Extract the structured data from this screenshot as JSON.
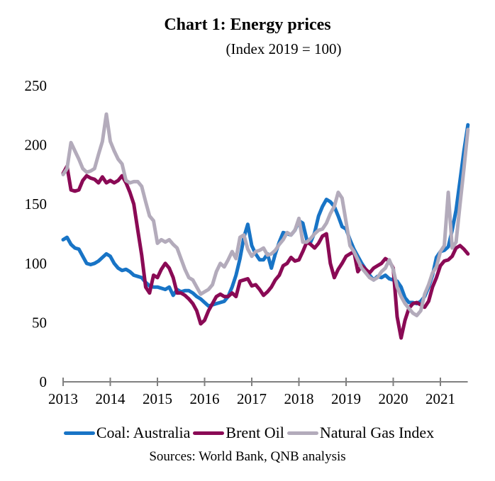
{
  "colors": {
    "coal": "#1874c6",
    "oil": "#8a0a55",
    "gas": "#b3abbb",
    "axis": "#808080"
  },
  "chart_data": {
    "type": "line",
    "title": "Chart 1: Energy prices",
    "subtitle": "(Index 2019 = 100)",
    "xlabel": "",
    "ylabel": "",
    "ylim": [
      0,
      250
    ],
    "yticks": [
      0,
      50,
      100,
      150,
      200,
      250
    ],
    "ytick_labels": [
      "0",
      "50",
      "100",
      "150",
      "200",
      "250"
    ],
    "xlim": [
      2013,
      2021.58
    ],
    "xticks": [
      2013,
      2014,
      2015,
      2016,
      2017,
      2018,
      2019,
      2020,
      2021
    ],
    "xtick_labels": [
      "2013",
      "2014",
      "2015",
      "2016",
      "2017",
      "2018",
      "2019",
      "2020",
      "2021"
    ],
    "grid": false,
    "legend_position": "bottom",
    "x_start": 2013.0,
    "x_step_years": 0.08333,
    "series": [
      {
        "name": "Coal: Australia",
        "key": "coal",
        "values": [
          120,
          122,
          116,
          113,
          112,
          106,
          100,
          99,
          100,
          102,
          105,
          108,
          106,
          100,
          96,
          94,
          95,
          93,
          90,
          89,
          88,
          84,
          81,
          80,
          80,
          79,
          78,
          80,
          73,
          78,
          76,
          77,
          77,
          75,
          72,
          70,
          67,
          64,
          65,
          66,
          67,
          68,
          72,
          80,
          90,
          104,
          122,
          133,
          115,
          108,
          103,
          103,
          108,
          96,
          108,
          118,
          126,
          125,
          124,
          128,
          136,
          134,
          120,
          118,
          126,
          140,
          148,
          154,
          152,
          148,
          140,
          131,
          129,
          120,
          112,
          106,
          100,
          95,
          90,
          86,
          89,
          88,
          90,
          87,
          86,
          85,
          80,
          71,
          67,
          67,
          66,
          68,
          72,
          80,
          90,
          105,
          110,
          111,
          114,
          128,
          145,
          170,
          195,
          217
        ]
      },
      {
        "name": "Brent Oil",
        "key": "oil",
        "values": [
          176,
          182,
          162,
          161,
          162,
          170,
          174,
          172,
          171,
          168,
          173,
          168,
          170,
          168,
          170,
          174,
          168,
          160,
          150,
          128,
          107,
          80,
          75,
          90,
          88,
          95,
          100,
          96,
          88,
          75,
          75,
          73,
          70,
          66,
          60,
          49,
          52,
          60,
          66,
          72,
          74,
          72,
          72,
          75,
          72,
          85,
          86,
          87,
          81,
          82,
          78,
          73,
          76,
          80,
          86,
          90,
          98,
          100,
          105,
          102,
          103,
          110,
          118,
          116,
          113,
          117,
          123,
          125,
          100,
          88,
          95,
          100,
          106,
          108,
          110,
          93,
          98,
          95,
          92,
          96,
          98,
          100,
          104,
          102,
          96,
          55,
          37,
          52,
          62,
          66,
          67,
          65,
          63,
          68,
          80,
          88,
          98,
          102,
          103,
          106,
          113,
          115,
          112,
          108
        ]
      },
      {
        "name": "Natural Gas Index",
        "key": "gas",
        "values": [
          175,
          180,
          202,
          195,
          188,
          180,
          177,
          178,
          180,
          192,
          203,
          226,
          203,
          195,
          188,
          184,
          170,
          168,
          169,
          169,
          165,
          152,
          140,
          136,
          117,
          120,
          118,
          120,
          116,
          113,
          104,
          95,
          88,
          86,
          80,
          74,
          76,
          78,
          82,
          93,
          100,
          97,
          103,
          110,
          104,
          122,
          124,
          112,
          106,
          110,
          111,
          113,
          107,
          108,
          111,
          116,
          120,
          126,
          124,
          128,
          138,
          118,
          118,
          121,
          125,
          128,
          129,
          134,
          142,
          148,
          160,
          155,
          135,
          115,
          110,
          103,
          96,
          92,
          88,
          86,
          88,
          93,
          96,
          103,
          95,
          80,
          72,
          66,
          62,
          58,
          56,
          60,
          74,
          82,
          92,
          97,
          110,
          115,
          160,
          113,
          118,
          150,
          180,
          213
        ]
      }
    ]
  },
  "legend": {
    "items": [
      {
        "label": "Coal: Australia",
        "key": "coal"
      },
      {
        "label": "Brent Oil",
        "key": "oil"
      },
      {
        "label": "Natural Gas Index",
        "key": "gas"
      }
    ]
  },
  "source": "Sources: World Bank, QNB analysis"
}
